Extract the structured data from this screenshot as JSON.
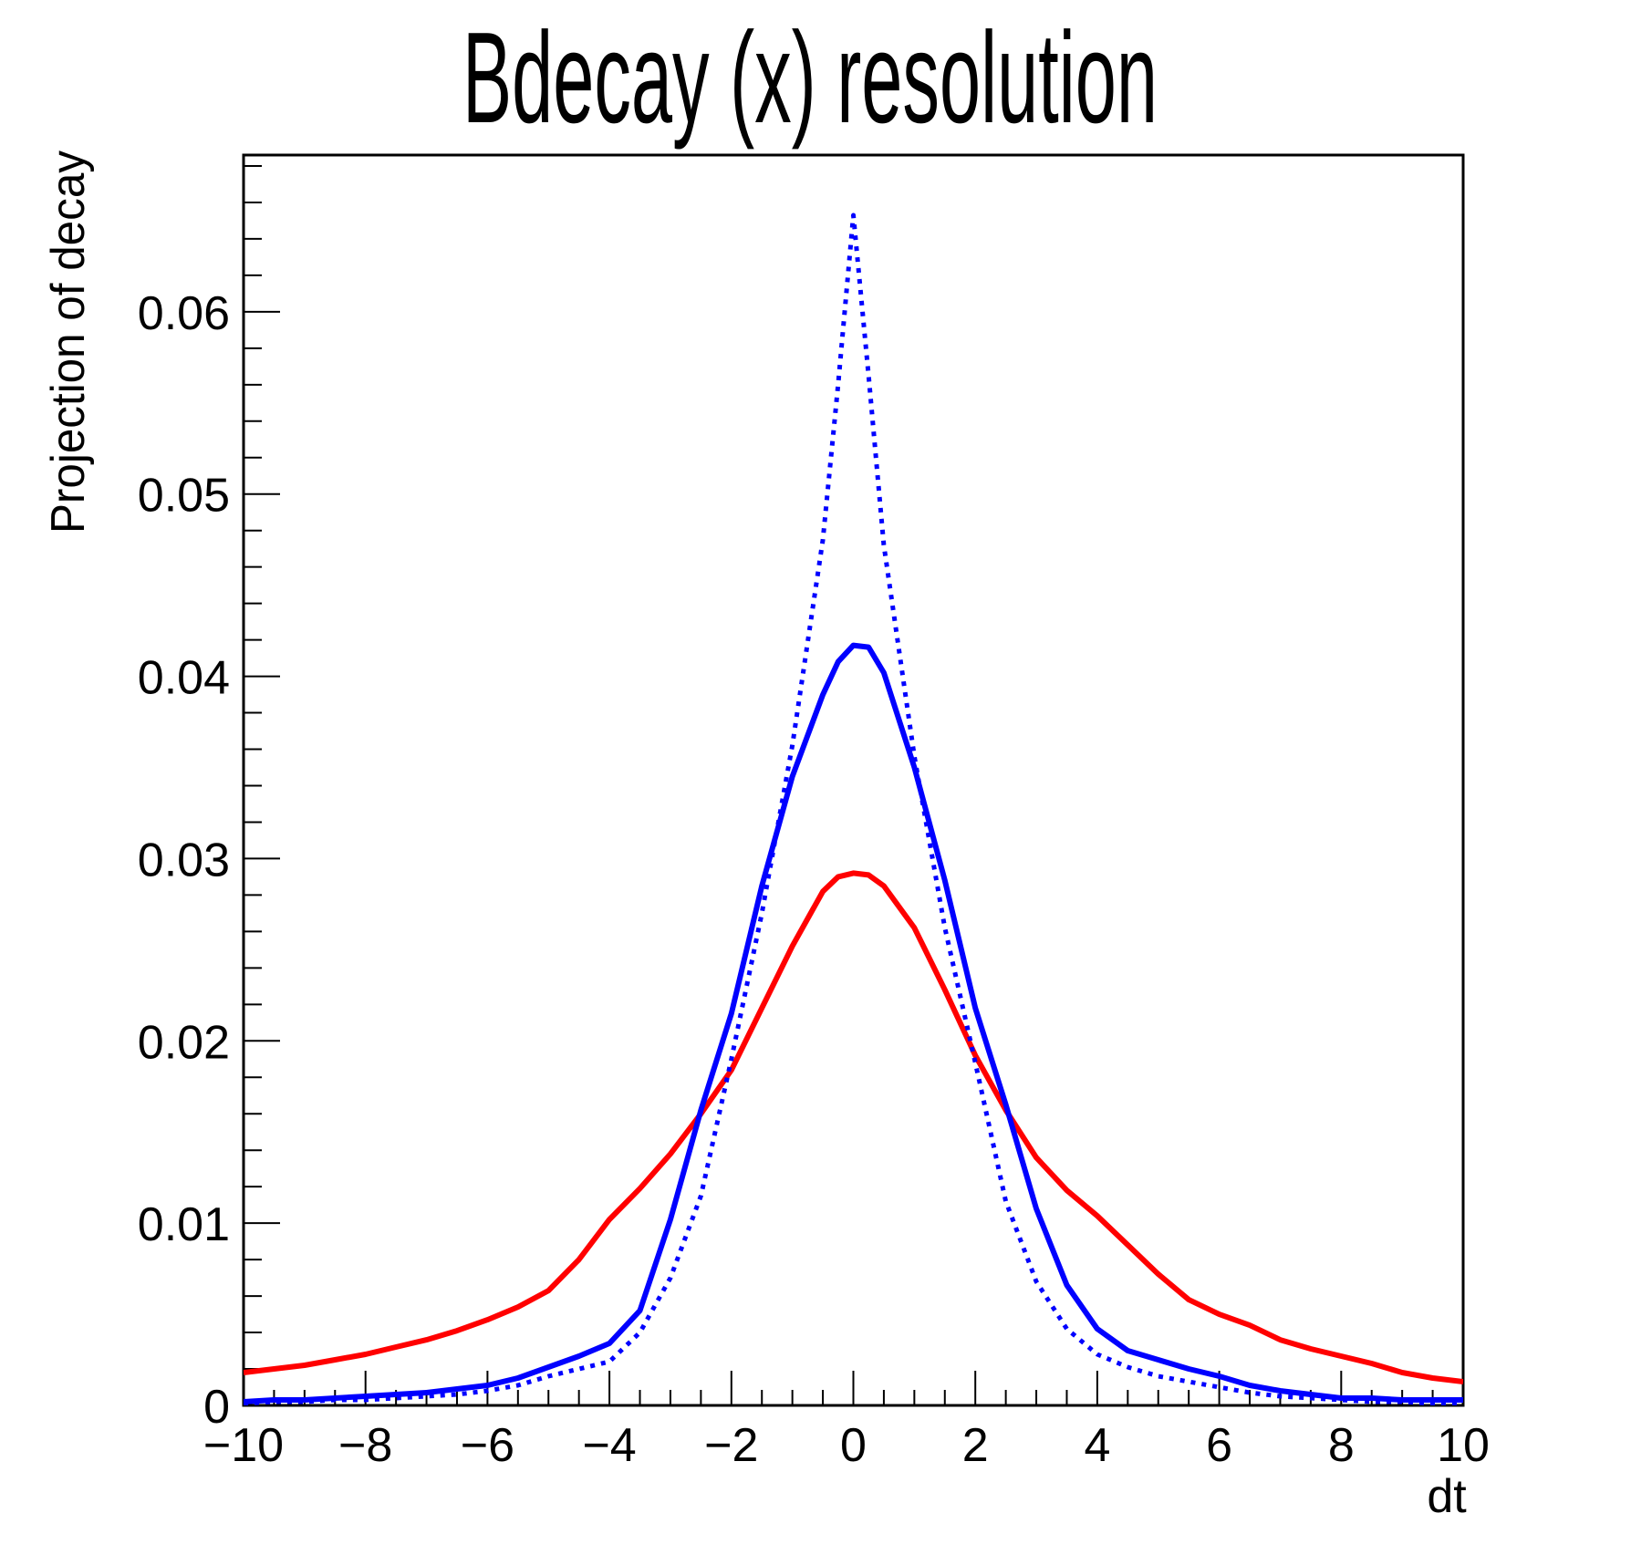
{
  "page": {
    "background_color": "#ffffff",
    "frame_color": "#000000"
  },
  "chart_data": {
    "type": "line",
    "title": "Bdecay (x) resolution",
    "xlabel": "dt",
    "ylabel": "Projection of decay",
    "xlim": [
      -10,
      10
    ],
    "ylim": [
      0,
      0.0686
    ],
    "grid": false,
    "legend": null,
    "x_major_ticks": [
      -10,
      -8,
      -6,
      -4,
      -2,
      0,
      2,
      4,
      6,
      8,
      10
    ],
    "x_tick_labels": [
      "−10",
      "−8",
      "−6",
      "−4",
      "−2",
      "0",
      "2",
      "4",
      "6",
      "8",
      "10"
    ],
    "x_minor_step": 0.5,
    "y_major_ticks": [
      0,
      0.01,
      0.02,
      0.03,
      0.04,
      0.05,
      0.06
    ],
    "y_tick_labels": [
      "0",
      "0.01",
      "0.02",
      "0.03",
      "0.04",
      "0.05",
      "0.06"
    ],
    "y_minor_step": 0.002,
    "series": [
      {
        "name": "wide-resolution-red-solid",
        "color": "#ff0000",
        "line_style": "solid",
        "line_width": 6,
        "points": [
          [
            -10,
            0.0018
          ],
          [
            -9.5,
            0.002
          ],
          [
            -9,
            0.0022
          ],
          [
            -8.5,
            0.0025
          ],
          [
            -8,
            0.0028
          ],
          [
            -7.5,
            0.0032
          ],
          [
            -7,
            0.0036
          ],
          [
            -6.5,
            0.0041
          ],
          [
            -6,
            0.0047
          ],
          [
            -5.5,
            0.0054
          ],
          [
            -5,
            0.0063
          ],
          [
            -4.5,
            0.008
          ],
          [
            -4,
            0.0102
          ],
          [
            -3.5,
            0.0119
          ],
          [
            -3,
            0.0138
          ],
          [
            -2.5,
            0.016
          ],
          [
            -2,
            0.0184
          ],
          [
            -1.5,
            0.0218
          ],
          [
            -1,
            0.0252
          ],
          [
            -0.5,
            0.0282
          ],
          [
            -0.25,
            0.029
          ],
          [
            0,
            0.0292
          ],
          [
            0.25,
            0.0291
          ],
          [
            0.5,
            0.0285
          ],
          [
            1,
            0.0262
          ],
          [
            1.5,
            0.0228
          ],
          [
            2,
            0.0192
          ],
          [
            2.5,
            0.0162
          ],
          [
            3,
            0.0136
          ],
          [
            3.5,
            0.0118
          ],
          [
            4,
            0.0104
          ],
          [
            4.5,
            0.0088
          ],
          [
            5,
            0.0072
          ],
          [
            5.5,
            0.0058
          ],
          [
            6,
            0.005
          ],
          [
            6.5,
            0.0044
          ],
          [
            7,
            0.0036
          ],
          [
            7.5,
            0.0031
          ],
          [
            8,
            0.0027
          ],
          [
            8.5,
            0.0023
          ],
          [
            9,
            0.0018
          ],
          [
            9.5,
            0.0015
          ],
          [
            10,
            0.0013
          ]
        ]
      },
      {
        "name": "narrow-resolution-blue-solid",
        "color": "#0000ff",
        "line_style": "solid",
        "line_width": 6,
        "points": [
          [
            -10,
            0.0002
          ],
          [
            -9.5,
            0.0003
          ],
          [
            -9,
            0.0003
          ],
          [
            -8.5,
            0.0004
          ],
          [
            -8,
            0.0005
          ],
          [
            -7.5,
            0.0006
          ],
          [
            -7,
            0.0007
          ],
          [
            -6.5,
            0.0009
          ],
          [
            -6,
            0.0011
          ],
          [
            -5.5,
            0.0015
          ],
          [
            -5,
            0.0021
          ],
          [
            -4.5,
            0.0027
          ],
          [
            -4,
            0.0034
          ],
          [
            -3.5,
            0.0052
          ],
          [
            -3,
            0.0102
          ],
          [
            -2.5,
            0.0162
          ],
          [
            -2,
            0.0215
          ],
          [
            -1.5,
            0.0285
          ],
          [
            -1,
            0.0345
          ],
          [
            -0.5,
            0.039
          ],
          [
            -0.25,
            0.0408
          ],
          [
            0,
            0.0417
          ],
          [
            0.25,
            0.0416
          ],
          [
            0.5,
            0.0402
          ],
          [
            1,
            0.035
          ],
          [
            1.5,
            0.0288
          ],
          [
            2,
            0.0218
          ],
          [
            2.5,
            0.0165
          ],
          [
            3,
            0.0108
          ],
          [
            3.5,
            0.0066
          ],
          [
            4,
            0.0042
          ],
          [
            4.5,
            0.003
          ],
          [
            5,
            0.0025
          ],
          [
            5.5,
            0.002
          ],
          [
            6,
            0.0016
          ],
          [
            6.5,
            0.0011
          ],
          [
            7,
            0.0008
          ],
          [
            7.5,
            0.0006
          ],
          [
            8,
            0.0004
          ],
          [
            8.5,
            0.0004
          ],
          [
            9,
            0.0003
          ],
          [
            9.5,
            0.0003
          ],
          [
            10,
            0.0003
          ]
        ]
      },
      {
        "name": "ideal-resolution-blue-dotted",
        "color": "#0000ff",
        "line_style": "dotted",
        "line_width": 5,
        "points": [
          [
            -10,
            0.0001
          ],
          [
            -9.5,
            0.0002
          ],
          [
            -9,
            0.0002
          ],
          [
            -8.5,
            0.0003
          ],
          [
            -8,
            0.0003
          ],
          [
            -7.5,
            0.0004
          ],
          [
            -7,
            0.0005
          ],
          [
            -6.5,
            0.0006
          ],
          [
            -6,
            0.0008
          ],
          [
            -5.5,
            0.0011
          ],
          [
            -5,
            0.0016
          ],
          [
            -4.5,
            0.002
          ],
          [
            -4,
            0.0024
          ],
          [
            -3.5,
            0.004
          ],
          [
            -3,
            0.007
          ],
          [
            -2.5,
            0.0115
          ],
          [
            -2,
            0.019
          ],
          [
            -1.5,
            0.027
          ],
          [
            -1,
            0.0362
          ],
          [
            -0.5,
            0.0475
          ],
          [
            -0.25,
            0.056
          ],
          [
            0,
            0.0653
          ],
          [
            0.25,
            0.0565
          ],
          [
            0.5,
            0.0472
          ],
          [
            1,
            0.0356
          ],
          [
            1.5,
            0.0262
          ],
          [
            2,
            0.0188
          ],
          [
            2.5,
            0.0112
          ],
          [
            3,
            0.0068
          ],
          [
            3.5,
            0.0042
          ],
          [
            4,
            0.0028
          ],
          [
            4.5,
            0.0021
          ],
          [
            5,
            0.0016
          ],
          [
            5.5,
            0.0013
          ],
          [
            6,
            0.001
          ],
          [
            6.5,
            0.0007
          ],
          [
            7,
            0.0005
          ],
          [
            7.5,
            0.0004
          ],
          [
            8,
            0.0003
          ],
          [
            8.5,
            0.0002
          ],
          [
            9,
            0.0002
          ],
          [
            9.5,
            0.0001
          ],
          [
            10,
            0.0001
          ]
        ]
      }
    ]
  }
}
